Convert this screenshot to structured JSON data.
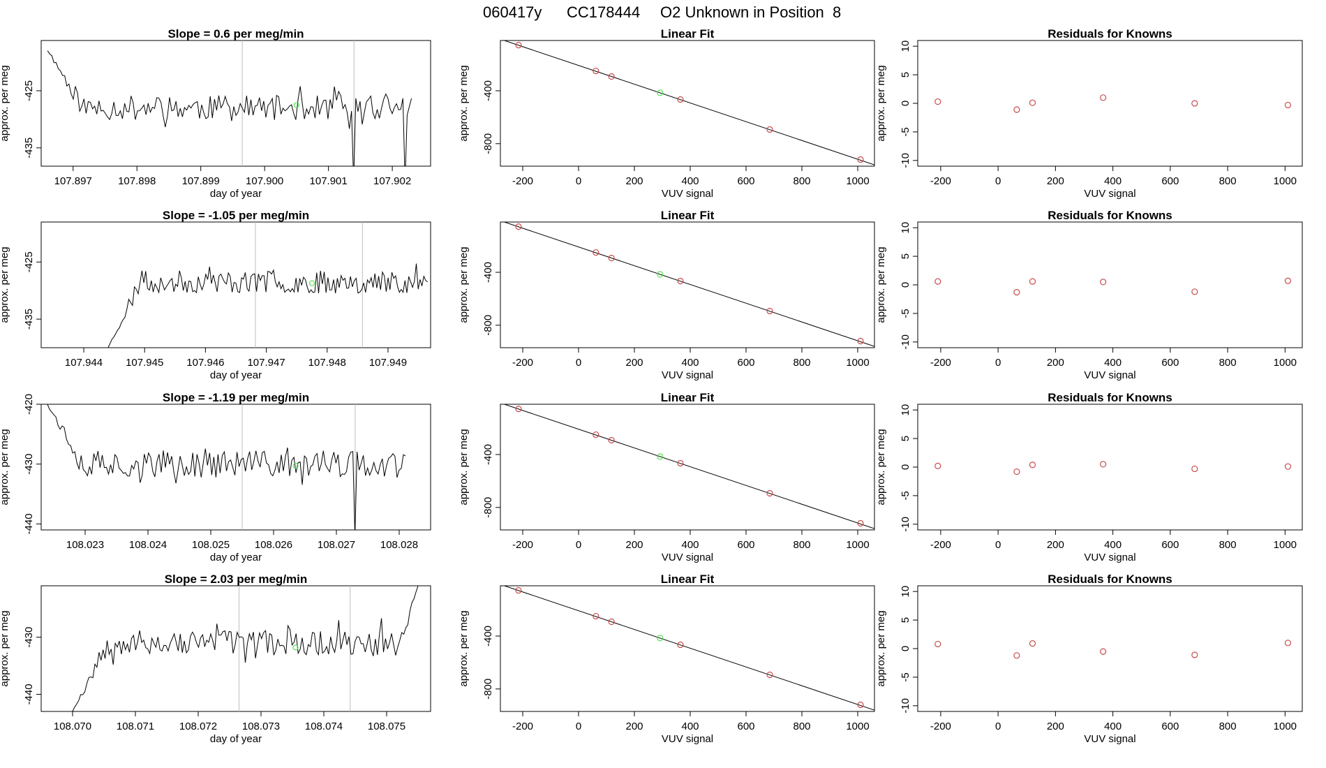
{
  "figure": {
    "title_parts": [
      "060417y",
      "CC178444",
      "O2 Unknown in Position  8"
    ]
  },
  "chart_data": [
    {
      "type": "line",
      "panel": "timeseries",
      "title_prefix": "Slope = ",
      "slope": "0.6",
      "title_suffix": "per meg/min",
      "xlabel": "day of year",
      "ylabel": "approx. per meg",
      "xlim": [
        107.8965,
        107.9026
      ],
      "ylim": [
        -438.2,
        -416.2
      ],
      "xticks": [
        "107.897",
        "107.898",
        "107.899",
        "107.900",
        "107.901",
        "107.902"
      ],
      "yticks": [
        "-425",
        "-435"
      ],
      "vlines": [
        107.89965,
        107.9014
      ],
      "x_start": 107.8966,
      "x_end": 107.9023,
      "start_y": -418,
      "level": -428,
      "noise": 2.2,
      "seed": 11,
      "drops": [
        [
          107.9014,
          -441
        ],
        [
          107.9022,
          -441
        ]
      ],
      "highlight_point": {
        "x": 107.9005,
        "y": -427.5
      }
    },
    {
      "type": "scatter",
      "panel": "fit",
      "title": "Linear Fit",
      "xlabel": "VUV signal",
      "ylabel": "approx. per meg",
      "xlim": [
        -280,
        1060
      ],
      "ylim": [
        -970,
        -20
      ],
      "xticks": [
        "-200",
        "0",
        "200",
        "400",
        "600",
        "800",
        "1000"
      ],
      "yticks": [
        "-400",
        "-800"
      ],
      "points": [
        [
          -215,
          -55
        ],
        [
          62,
          -250
        ],
        [
          118,
          -292
        ],
        [
          365,
          -466
        ],
        [
          685,
          -693
        ],
        [
          1010,
          -920
        ]
      ],
      "unknown_point": [
        292,
        -415
      ],
      "line": [
        [
          -280,
          -10
        ],
        [
          1060,
          -960
        ]
      ]
    },
    {
      "type": "scatter",
      "panel": "residuals",
      "title": "Residuals for Knowns",
      "xlabel": "VUV signal",
      "ylabel": "approx. per meg",
      "xlim": [
        -280,
        1060
      ],
      "ylim": [
        -11,
        11
      ],
      "xticks": [
        "-200",
        "0",
        "200",
        "400",
        "600",
        "800",
        "1000"
      ],
      "yticks": [
        "10",
        "5",
        "0",
        "-5",
        "-10"
      ],
      "points": [
        [
          -210,
          0.3
        ],
        [
          65,
          -1.1
        ],
        [
          120,
          0.1
        ],
        [
          366,
          1.0
        ],
        [
          685,
          0.0
        ],
        [
          1010,
          -0.3
        ]
      ]
    },
    {
      "type": "line",
      "panel": "timeseries",
      "title_prefix": "Slope = ",
      "slope": "-1.05",
      "title_suffix": "per meg/min",
      "xlabel": "day of year",
      "ylabel": "approx. per meg",
      "xlim": [
        107.9433,
        107.9497
      ],
      "ylim": [
        -440,
        -418
      ],
      "xticks": [
        "107.944",
        "107.945",
        "107.946",
        "107.947",
        "107.948",
        "107.949"
      ],
      "yticks": [
        "-425",
        "-435"
      ],
      "vlines": [
        107.94682,
        107.94858
      ],
      "x_start": 107.9444,
      "x_end": 107.94965,
      "start_y": -440,
      "level": -428.5,
      "noise": 2.0,
      "seed": 23,
      "drops": [],
      "highlight_point": {
        "x": 107.94775,
        "y": -428.7
      }
    },
    {
      "type": "scatter",
      "panel": "fit",
      "title": "Linear Fit",
      "xlabel": "VUV signal",
      "ylabel": "approx. per meg",
      "xlim": [
        -280,
        1060
      ],
      "ylim": [
        -970,
        -20
      ],
      "xticks": [
        "-200",
        "0",
        "200",
        "400",
        "600",
        "800",
        "1000"
      ],
      "yticks": [
        "-400",
        "-800"
      ],
      "points": [
        [
          -215,
          -55
        ],
        [
          62,
          -250
        ],
        [
          118,
          -292
        ],
        [
          365,
          -466
        ],
        [
          685,
          -693
        ],
        [
          1010,
          -920
        ]
      ],
      "unknown_point": [
        292,
        -415
      ],
      "line": [
        [
          -280,
          -10
        ],
        [
          1060,
          -960
        ]
      ]
    },
    {
      "type": "scatter",
      "panel": "residuals",
      "title": "Residuals for Knowns",
      "xlabel": "VUV signal",
      "ylabel": "approx. per meg",
      "xlim": [
        -280,
        1060
      ],
      "ylim": [
        -11,
        11
      ],
      "xticks": [
        "-200",
        "0",
        "200",
        "400",
        "600",
        "800",
        "1000"
      ],
      "yticks": [
        "10",
        "5",
        "0",
        "-5",
        "-10"
      ],
      "points": [
        [
          -210,
          0.6
        ],
        [
          65,
          -1.3
        ],
        [
          120,
          0.6
        ],
        [
          366,
          0.5
        ],
        [
          685,
          -1.2
        ],
        [
          1010,
          0.7
        ]
      ]
    },
    {
      "type": "line",
      "panel": "timeseries",
      "title_prefix": "Slope = ",
      "slope": "-1.19",
      "title_suffix": "per meg/min",
      "xlabel": "day of year",
      "ylabel": "approx. per meg",
      "xlim": [
        108.0223,
        108.0285
      ],
      "ylim": [
        -441,
        -420
      ],
      "xticks": [
        "108.023",
        "108.024",
        "108.025",
        "108.026",
        "108.027",
        "108.028"
      ],
      "yticks": [
        "-420",
        "-430",
        "-440"
      ],
      "vlines": [
        108.0255,
        108.0273
      ],
      "x_start": 108.0224,
      "x_end": 108.0281,
      "start_y": -420,
      "level": -430,
      "noise": 2.3,
      "seed": 37,
      "drops": [
        [
          108.0273,
          -442
        ]
      ],
      "highlight_point": {
        "x": 108.02635,
        "y": -430.3
      }
    },
    {
      "type": "scatter",
      "panel": "fit",
      "title": "Linear Fit",
      "xlabel": "VUV signal",
      "ylabel": "approx. per meg",
      "xlim": [
        -280,
        1060
      ],
      "ylim": [
        -970,
        -20
      ],
      "xticks": [
        "-200",
        "0",
        "200",
        "400",
        "600",
        "800",
        "1000"
      ],
      "yticks": [
        "-400",
        "-800"
      ],
      "points": [
        [
          -215,
          -55
        ],
        [
          62,
          -250
        ],
        [
          118,
          -292
        ],
        [
          365,
          -466
        ],
        [
          685,
          -693
        ],
        [
          1010,
          -920
        ]
      ],
      "unknown_point": [
        292,
        -415
      ],
      "line": [
        [
          -280,
          -10
        ],
        [
          1060,
          -960
        ]
      ]
    },
    {
      "type": "scatter",
      "panel": "residuals",
      "title": "Residuals for Knowns",
      "xlabel": "VUV signal",
      "ylabel": "approx. per meg",
      "xlim": [
        -280,
        1060
      ],
      "ylim": [
        -11,
        11
      ],
      "xticks": [
        "-200",
        "0",
        "200",
        "400",
        "600",
        "800",
        "1000"
      ],
      "yticks": [
        "10",
        "5",
        "0",
        "-5",
        "-10"
      ],
      "points": [
        [
          -210,
          0.2
        ],
        [
          65,
          -0.8
        ],
        [
          120,
          0.4
        ],
        [
          366,
          0.5
        ],
        [
          685,
          -0.3
        ],
        [
          1010,
          0.1
        ]
      ]
    },
    {
      "type": "line",
      "panel": "timeseries",
      "title_prefix": "Slope = ",
      "slope": "2.03",
      "title_suffix": "per meg/min",
      "xlabel": "day of year",
      "ylabel": "approx. per meg",
      "xlim": [
        108.0695,
        108.0757
      ],
      "ylim": [
        -443,
        -421
      ],
      "xticks": [
        "108.070",
        "108.071",
        "108.072",
        "108.073",
        "108.074",
        "108.075"
      ],
      "yticks": [
        "-430",
        "-440"
      ],
      "vlines": [
        108.07265,
        108.07442
      ],
      "x_start": 108.07,
      "x_end": 108.0755,
      "start_y": -443,
      "level": -431,
      "noise": 2.2,
      "seed": 53,
      "drops": [],
      "end_y": -421,
      "highlight_point": {
        "x": 108.07355,
        "y": -431.8
      }
    },
    {
      "type": "scatter",
      "panel": "fit",
      "title": "Linear Fit",
      "xlabel": "VUV signal",
      "ylabel": "approx. per meg",
      "xlim": [
        -280,
        1060
      ],
      "ylim": [
        -970,
        -20
      ],
      "xticks": [
        "-200",
        "0",
        "200",
        "400",
        "600",
        "800",
        "1000"
      ],
      "yticks": [
        "-400",
        "-800"
      ],
      "points": [
        [
          -215,
          -55
        ],
        [
          62,
          -250
        ],
        [
          118,
          -292
        ],
        [
          365,
          -466
        ],
        [
          685,
          -693
        ],
        [
          1010,
          -920
        ]
      ],
      "unknown_point": [
        292,
        -415
      ],
      "line": [
        [
          -280,
          -10
        ],
        [
          1060,
          -960
        ]
      ]
    },
    {
      "type": "scatter",
      "panel": "residuals",
      "title": "Residuals for Knowns",
      "xlabel": "VUV signal",
      "ylabel": "approx. per meg",
      "xlim": [
        -280,
        1060
      ],
      "ylim": [
        -11,
        11
      ],
      "xticks": [
        "-200",
        "0",
        "200",
        "400",
        "600",
        "800",
        "1000"
      ],
      "yticks": [
        "10",
        "5",
        "0",
        "-5",
        "-10"
      ],
      "points": [
        [
          -210,
          0.8
        ],
        [
          65,
          -1.2
        ],
        [
          120,
          0.9
        ],
        [
          366,
          -0.5
        ],
        [
          685,
          -1.1
        ],
        [
          1010,
          1.0
        ]
      ]
    }
  ],
  "colors": {
    "line": "#000000",
    "known_point": "#c84a4a",
    "unknown_point": "#55e055",
    "vline": "#bdbdbd",
    "axis": "#000000"
  }
}
